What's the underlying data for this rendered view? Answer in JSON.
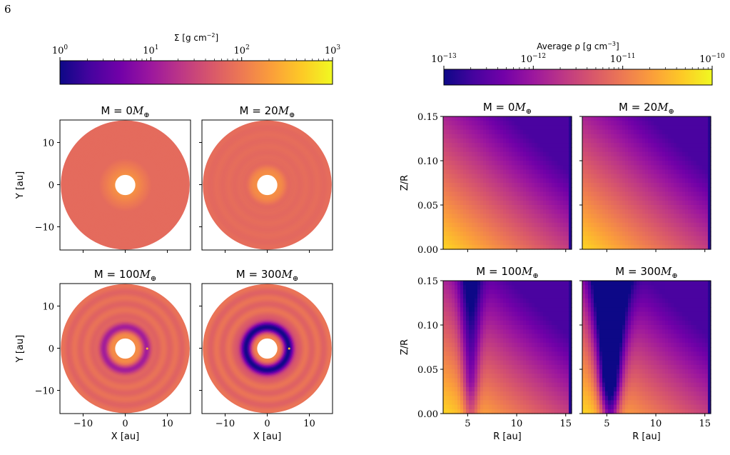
{
  "page": {
    "page_number": "6"
  },
  "colormap": {
    "name": "plasma",
    "stops": [
      "#0d0887",
      "#46039f",
      "#7201a8",
      "#9c179e",
      "#bd3786",
      "#d8576b",
      "#ed7953",
      "#fb9f3a",
      "#fdca26",
      "#f0f921"
    ]
  },
  "chart_data": [
    {
      "type": "heatmap",
      "panel": "surface-density-grid",
      "colorbar": {
        "label_prefix": "Σ [g cm",
        "label_exp": "−2",
        "label_suffix": "]",
        "scale": "log",
        "range": [
          1,
          1000
        ],
        "ticks": [
          {
            "base": "10",
            "exp": "0"
          },
          {
            "base": "10",
            "exp": "1"
          },
          {
            "base": "10",
            "exp": "2"
          },
          {
            "base": "10",
            "exp": "3"
          }
        ]
      },
      "xlabel": "X [au]",
      "ylabel": "Y [au]",
      "xlim": [
        -15.5,
        15.5
      ],
      "ylim": [
        -15.5,
        15.5
      ],
      "xticks": [
        -10,
        0,
        10
      ],
      "yticks": [
        -10,
        0,
        10
      ],
      "tick_labels": [
        "−10",
        "0",
        "10"
      ],
      "inner_radius_au": 2.4,
      "outer_radius_au": 15.3,
      "subplots": [
        {
          "title_prefix": "M = ",
          "mass": "0",
          "title_suffix": "M",
          "sub": "⊕",
          "gap_depth": 0.0,
          "ring_contrast": 0.0
        },
        {
          "title_prefix": "M = ",
          "mass": "20",
          "title_suffix": "M",
          "sub": "⊕",
          "gap_depth": 0.05,
          "ring_contrast": 0.15
        },
        {
          "title_prefix": "M = ",
          "mass": "100",
          "title_suffix": "M",
          "sub": "⊕",
          "gap_depth": 0.45,
          "ring_contrast": 0.5
        },
        {
          "title_prefix": "M = ",
          "mass": "300",
          "title_suffix": "M",
          "sub": "⊕",
          "gap_depth": 1.0,
          "ring_contrast": 0.6
        }
      ]
    },
    {
      "type": "heatmap",
      "panel": "vertical-density-grid",
      "colorbar": {
        "label_prefix": "Average ρ [g cm",
        "label_exp": "−3",
        "label_suffix": "]",
        "scale": "log",
        "range": [
          1e-13,
          1e-10
        ],
        "ticks": [
          {
            "base": "10",
            "exp": "−13"
          },
          {
            "base": "10",
            "exp": "−12"
          },
          {
            "base": "10",
            "exp": "−11"
          },
          {
            "base": "10",
            "exp": "−10"
          }
        ]
      },
      "xlabel": "R [au]",
      "ylabel": "Z/R",
      "xlim": [
        2.5,
        15.6
      ],
      "ylim": [
        0.0,
        0.15
      ],
      "xticks": [
        5,
        10,
        15
      ],
      "yticks": [
        0.0,
        0.05,
        0.1,
        0.15
      ],
      "xtick_labels": [
        "5",
        "10",
        "15"
      ],
      "ytick_labels": [
        "0.00",
        "0.05",
        "0.10",
        "0.15"
      ],
      "subplots": [
        {
          "title_prefix": "M = ",
          "mass": "0",
          "title_suffix": "M",
          "sub": "⊕",
          "gap_depth": 0.0
        },
        {
          "title_prefix": "M = ",
          "mass": "20",
          "title_suffix": "M",
          "sub": "⊕",
          "gap_depth": 0.0
        },
        {
          "title_prefix": "M = ",
          "mass": "100",
          "title_suffix": "M",
          "sub": "⊕",
          "gap_depth": 0.45
        },
        {
          "title_prefix": "M = ",
          "mass": "300",
          "title_suffix": "M",
          "sub": "⊕",
          "gap_depth": 1.0
        }
      ]
    }
  ]
}
